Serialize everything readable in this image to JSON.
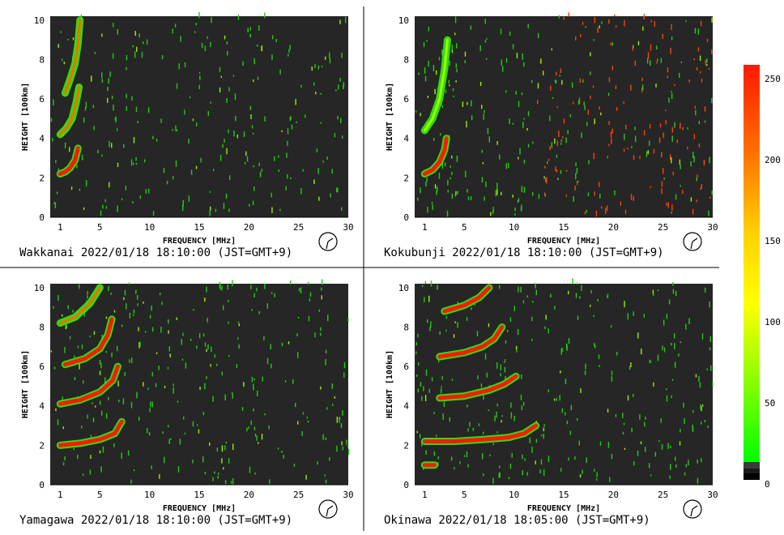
{
  "panels": [
    {
      "station": "Wakkanai",
      "caption": "Wakkanai 2022/01/18 18:10:00 (JST=GMT+9)"
    },
    {
      "station": "Kokubunji",
      "caption": "Kokubunji 2022/01/18 18:10:00 (JST=GMT+9)"
    },
    {
      "station": "Yamagawa",
      "caption": "Yamagawa 2022/01/18 18:10:00 (JST=GMT+9)"
    },
    {
      "station": "Okinawa",
      "caption": "Okinawa 2022/01/18 18:05:00 (JST=GMT+9)"
    }
  ],
  "colorbar": {
    "ticks": [
      "250",
      "200",
      "150",
      "100",
      "50",
      "0"
    ],
    "colors": [
      "#ff0000",
      "#ff6600",
      "#ffcc00",
      "#ffff00",
      "#99ff00",
      "#00ee00"
    ],
    "icon": "clock-icon"
  },
  "chart_data": [
    {
      "type": "heatmap",
      "title": "Wakkanai 2022/01/18 18:10:00 (JST=GMT+9)",
      "xlabel": "FREQUENCY [MHz]",
      "ylabel": "HEIGHT [100km]",
      "xlim": [
        0,
        30
      ],
      "ylim": [
        0,
        10.2
      ],
      "xticks": [
        "1",
        "5",
        "10",
        "15",
        "20",
        "25",
        "30"
      ],
      "yticks": [
        "0",
        "2",
        "4",
        "6",
        "8",
        "10"
      ],
      "traces": [
        {
          "level": "high",
          "points": [
            [
              1.0,
              2.2
            ],
            [
              1.5,
              2.3
            ],
            [
              2.0,
              2.5
            ],
            [
              2.5,
              2.9
            ],
            [
              2.8,
              3.5
            ]
          ]
        },
        {
          "level": "mid",
          "points": [
            [
              1.0,
              4.2
            ],
            [
              1.6,
              4.5
            ],
            [
              2.2,
              5.0
            ],
            [
              2.6,
              5.8
            ],
            [
              2.9,
              6.6
            ]
          ]
        },
        {
          "level": "mid",
          "points": [
            [
              1.5,
              6.3
            ],
            [
              2.0,
              7.0
            ],
            [
              2.5,
              7.8
            ],
            [
              2.8,
              8.8
            ],
            [
              3.0,
              10.0
            ]
          ]
        }
      ],
      "noise_density": 0.6
    },
    {
      "type": "heatmap",
      "title": "Kokubunji 2022/01/18 18:10:00 (JST=GMT+9)",
      "xlabel": "FREQUENCY [MHz]",
      "ylabel": "HEIGHT [100km]",
      "xlim": [
        0,
        30
      ],
      "ylim": [
        0,
        10.2
      ],
      "xticks": [
        "1",
        "5",
        "10",
        "15",
        "20",
        "25",
        "30"
      ],
      "yticks": [
        "0",
        "2",
        "4",
        "6",
        "8",
        "10"
      ],
      "traces": [
        {
          "level": "high",
          "points": [
            [
              1.0,
              2.2
            ],
            [
              1.8,
              2.4
            ],
            [
              2.5,
              2.8
            ],
            [
              3.0,
              3.4
            ],
            [
              3.2,
              4.0
            ]
          ]
        },
        {
          "level": "low",
          "points": [
            [
              1.0,
              4.4
            ],
            [
              1.8,
              5.0
            ],
            [
              2.5,
              6.0
            ],
            [
              3.0,
              7.5
            ],
            [
              3.3,
              9.0
            ]
          ]
        }
      ],
      "noise_density": 0.9,
      "sparse_red_from": 12
    },
    {
      "type": "heatmap",
      "title": "Yamagawa 2022/01/18 18:10:00 (JST=GMT+9)",
      "xlabel": "FREQUENCY [MHz]",
      "ylabel": "HEIGHT [100km]",
      "xlim": [
        0,
        30
      ],
      "ylim": [
        0,
        10.2
      ],
      "xticks": [
        "1",
        "5",
        "10",
        "15",
        "20",
        "25",
        "30"
      ],
      "yticks": [
        "0",
        "2",
        "4",
        "6",
        "8",
        "10"
      ],
      "traces": [
        {
          "level": "high",
          "points": [
            [
              1.0,
              2.0
            ],
            [
              3.0,
              2.1
            ],
            [
              5.0,
              2.3
            ],
            [
              6.5,
              2.6
            ],
            [
              7.2,
              3.2
            ]
          ]
        },
        {
          "level": "high",
          "points": [
            [
              1.0,
              4.1
            ],
            [
              3.0,
              4.3
            ],
            [
              5.0,
              4.7
            ],
            [
              6.3,
              5.3
            ],
            [
              6.8,
              6.0
            ]
          ]
        },
        {
          "level": "high",
          "points": [
            [
              1.5,
              6.1
            ],
            [
              3.5,
              6.4
            ],
            [
              5.0,
              6.9
            ],
            [
              5.8,
              7.6
            ],
            [
              6.2,
              8.4
            ]
          ]
        },
        {
          "level": "mid",
          "points": [
            [
              1.0,
              8.2
            ],
            [
              2.5,
              8.5
            ],
            [
              4.0,
              9.2
            ],
            [
              5.0,
              10.0
            ]
          ]
        }
      ],
      "noise_density": 0.7
    },
    {
      "type": "heatmap",
      "title": "Okinawa 2022/01/18 18:05:00 (JST=GMT+9)",
      "xlabel": "FREQUENCY [MHz]",
      "ylabel": "HEIGHT [100km]",
      "xlim": [
        0,
        30
      ],
      "ylim": [
        0,
        10.2
      ],
      "xticks": [
        "1",
        "5",
        "10",
        "15",
        "20",
        "25",
        "30"
      ],
      "yticks": [
        "0",
        "2",
        "4",
        "6",
        "8",
        "10"
      ],
      "traces": [
        {
          "level": "high",
          "points": [
            [
              1.0,
              1.0
            ],
            [
              2.0,
              1.0
            ]
          ]
        },
        {
          "level": "high",
          "points": [
            [
              1.0,
              2.2
            ],
            [
              4.0,
              2.2
            ],
            [
              7.0,
              2.3
            ],
            [
              9.5,
              2.4
            ],
            [
              11.0,
              2.6
            ],
            [
              12.2,
              3.0
            ]
          ]
        },
        {
          "level": "high",
          "points": [
            [
              2.5,
              4.4
            ],
            [
              5.0,
              4.5
            ],
            [
              7.5,
              4.8
            ],
            [
              9.0,
              5.1
            ],
            [
              10.2,
              5.5
            ]
          ]
        },
        {
          "level": "high",
          "points": [
            [
              2.5,
              6.5
            ],
            [
              5.0,
              6.7
            ],
            [
              6.8,
              7.0
            ],
            [
              8.0,
              7.4
            ],
            [
              8.8,
              8.0
            ]
          ]
        },
        {
          "level": "high",
          "points": [
            [
              3.0,
              8.8
            ],
            [
              5.0,
              9.1
            ],
            [
              6.5,
              9.5
            ],
            [
              7.5,
              10.0
            ]
          ]
        }
      ],
      "noise_density": 0.7
    }
  ]
}
